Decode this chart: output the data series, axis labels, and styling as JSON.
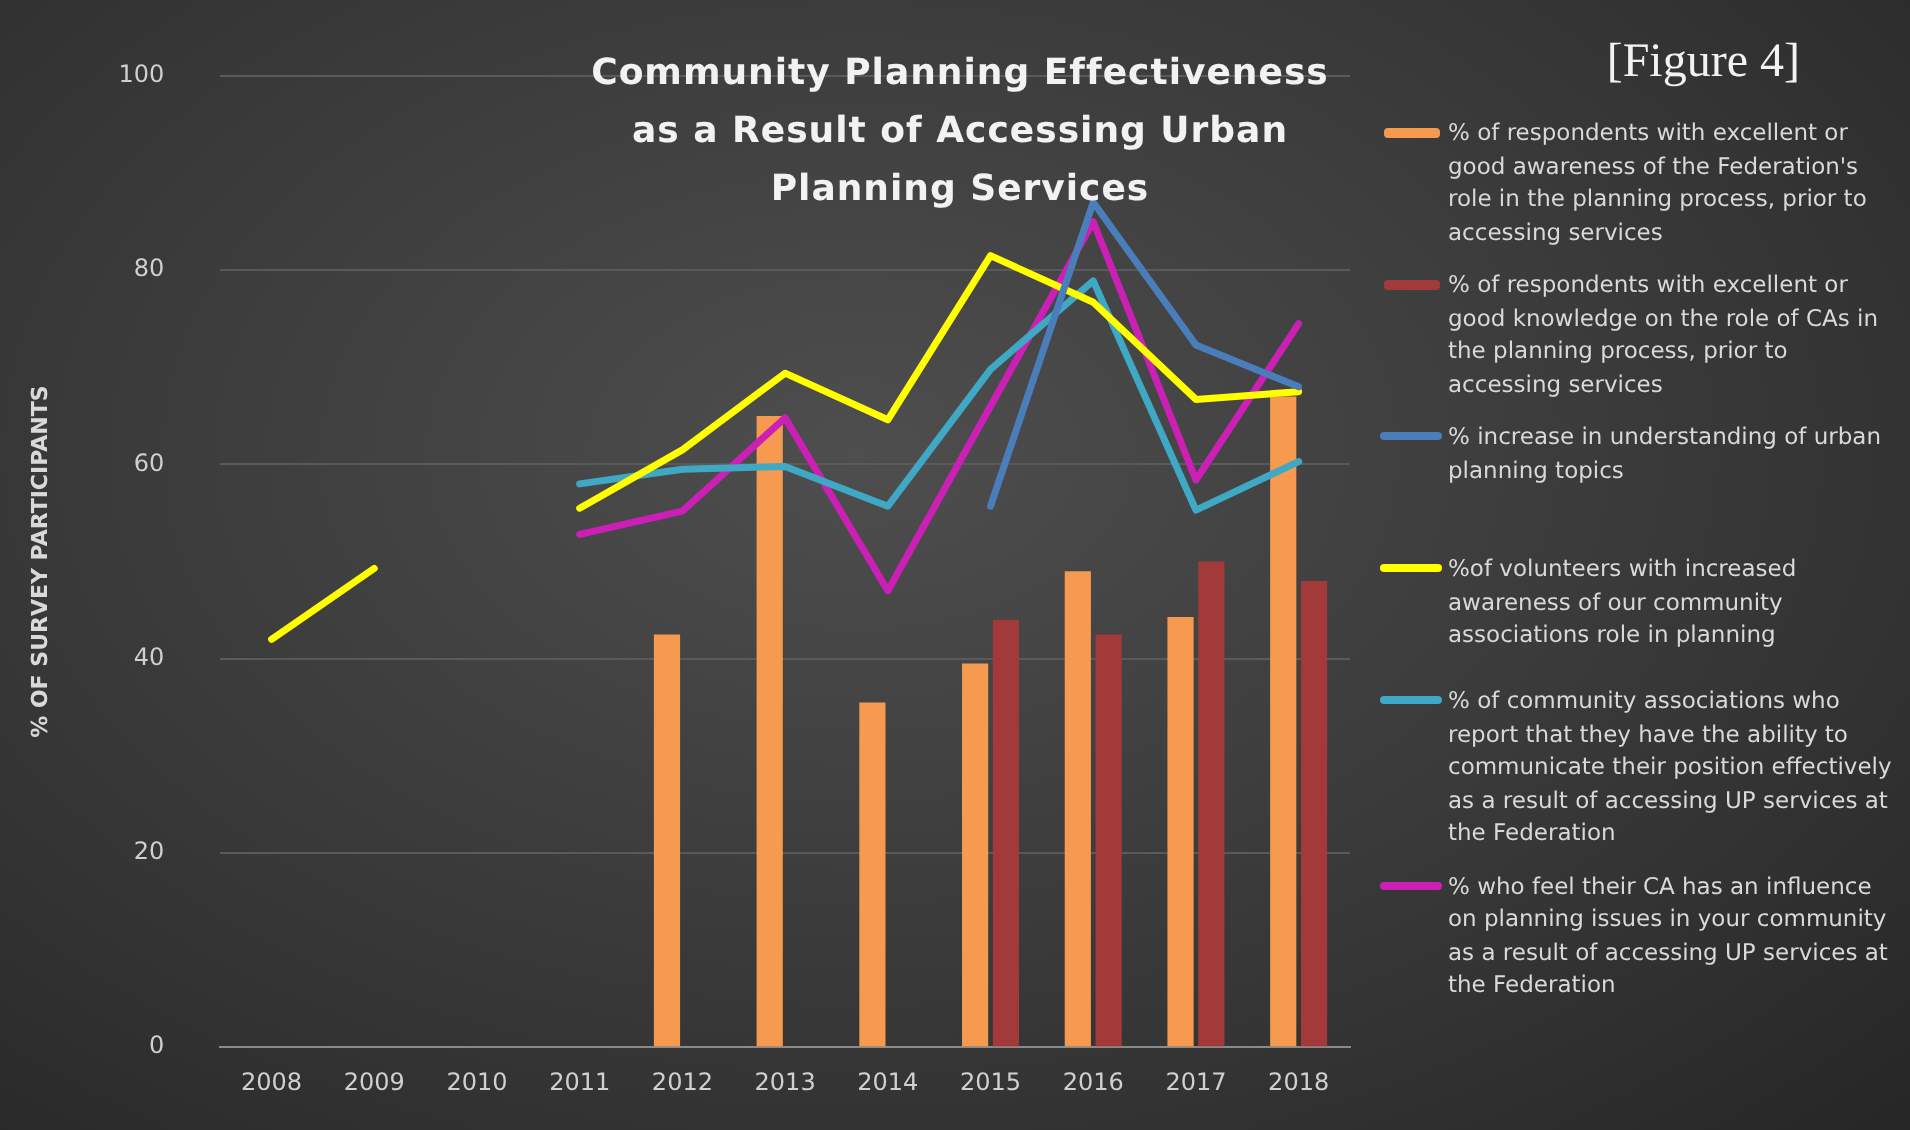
{
  "chart_data": {
    "type": "bar",
    "title": "Community Planning Effectiveness as a Result of Accessing Urban Planning Services",
    "ylabel": "% OF SURVEY PARTICIPANTS",
    "annotations": [
      "[Figure 4]"
    ],
    "categories": [
      "2008",
      "2009",
      "2010",
      "2011",
      "2012",
      "2013",
      "2014",
      "2015",
      "2016",
      "2017",
      "2018"
    ],
    "series": [
      {
        "name": "% of respondents with excellent or good awareness of the Federation's role in the planning process, prior to accessing services",
        "color": "#f59a4e",
        "values": [
          null,
          null,
          null,
          null,
          42.5,
          65,
          35.5,
          39.5,
          49,
          44.3,
          67
        ]
      },
      {
        "name": "% of respondents with excellent or good knowledge on the role of CAs in the planning process, prior to accessing services",
        "color": "#a33a3a",
        "values": [
          null,
          null,
          null,
          null,
          null,
          null,
          null,
          44,
          42.5,
          50,
          48
        ]
      },
      {
        "name": "% increase in understanding of urban planning topics",
        "type": "line",
        "color": "#4a7ebb",
        "values": [
          null,
          null,
          null,
          null,
          null,
          null,
          null,
          55.7,
          87,
          72.3,
          68
        ]
      },
      {
        "name": "%of volunteers with increased awareness of our community associations role in planning",
        "type": "line",
        "color": "#ffff00",
        "values": [
          42,
          49.3,
          null,
          55.5,
          61.5,
          69.4,
          64.6,
          81.5,
          76.7,
          66.7,
          67.5
        ]
      },
      {
        "name": "% of community associations who report that they have the ability to communicate their position effectively as a result of accessing UP services at the Federation",
        "type": "line",
        "color": "#3fa9c5",
        "values": [
          null,
          null,
          null,
          58,
          59.5,
          59.8,
          55.7,
          69.8,
          78.9,
          55.3,
          60.3
        ]
      },
      {
        "name": "% who feel their CA has an influence on planning issues in your community as a result of accessing UP services at the Federation",
        "type": "line",
        "color": "#cc1fb5",
        "values": [
          null,
          null,
          null,
          52.8,
          55.2,
          64.8,
          47,
          66,
          85,
          58.4,
          74.5
        ]
      }
    ],
    "ylim": [
      0,
      100
    ],
    "yticks": [
      0,
      20,
      40,
      60,
      80,
      100
    ],
    "grid": "y",
    "legend": "right",
    "marker": "none"
  }
}
